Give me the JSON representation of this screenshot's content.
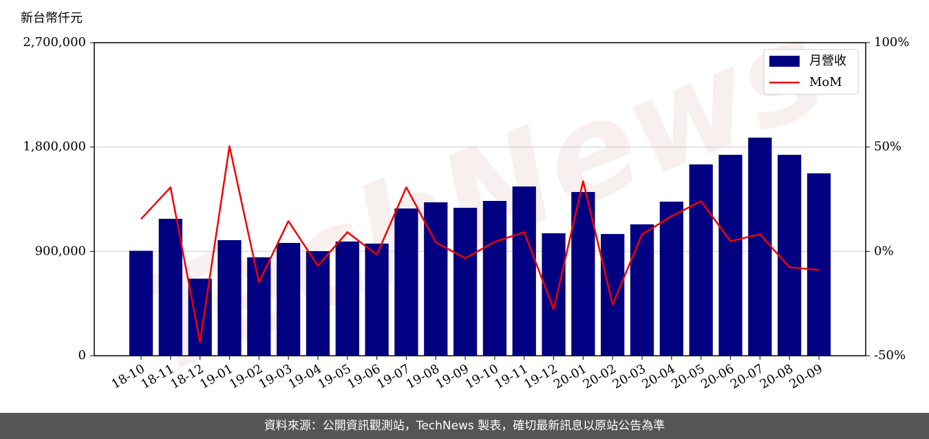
{
  "chart_data": {
    "type": "bar_line",
    "y_label": "新台幣仟元",
    "watermark": "TechNews",
    "footer": "資料來源：公開資訊觀測站，TechNews 製表，確切最新訊息以原站公告為準",
    "categories": [
      "18-10",
      "18-11",
      "18-12",
      "19-01",
      "19-02",
      "19-03",
      "19-04",
      "19-05",
      "19-06",
      "19-07",
      "19-08",
      "19-09",
      "19-10",
      "19-11",
      "19-12",
      "20-01",
      "20-02",
      "20-03",
      "20-04",
      "20-05",
      "20-06",
      "20-07",
      "20-08",
      "20-09"
    ],
    "series": [
      {
        "name": "月營收",
        "type": "bar",
        "color": "#000080",
        "values": [
          905000,
          1181000,
          665000,
          997000,
          849000,
          973000,
          902000,
          985000,
          967000,
          1270000,
          1323000,
          1276000,
          1335000,
          1460000,
          1056000,
          1412000,
          1050000,
          1133000,
          1329000,
          1650000,
          1733000,
          1881000,
          1733000,
          1573000
        ]
      },
      {
        "name": "MoM",
        "type": "line",
        "color": "#ee0000",
        "axis": "y2",
        "values": [
          15.5,
          30.7,
          -43.5,
          50.4,
          -14.8,
          14.5,
          -6.9,
          9.2,
          -1.6,
          30.7,
          4.3,
          -3.3,
          4.6,
          9.2,
          -27.7,
          33.6,
          -25.4,
          8.2,
          16.8,
          24.1,
          4.9,
          8.2,
          -7.6,
          -8.9
        ]
      }
    ],
    "ylim": [
      0,
      2700000
    ],
    "yticks": [
      0,
      {
        "value": 900000,
        "label": "900,000"
      },
      {
        "value": 1800000,
        "label": "1,800,000"
      },
      {
        "value": 2700000,
        "label": "2,700,000"
      }
    ],
    "y2lim": [
      -50,
      100
    ],
    "y2ticks": [
      {
        "value": -50,
        "label": "-50%"
      },
      {
        "value": 0,
        "label": "0%"
      },
      {
        "value": 50,
        "label": "50%"
      },
      {
        "value": 100,
        "label": "100%"
      }
    ],
    "grid": true,
    "legend": "upper right"
  }
}
